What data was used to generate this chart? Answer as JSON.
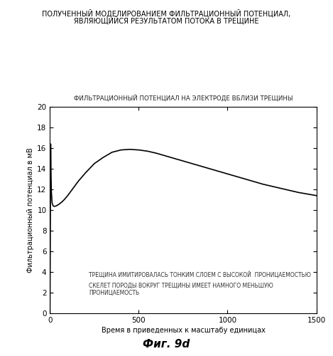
{
  "title_line1": "ПОЛУЧЕННЫЙ МОДЕЛИРОВАНИЕМ ФИЛЬТРАЦИОННЫЙ ПОТЕНЦИАЛ,",
  "title_line2": "ЯВЛЯЮЩИЙСЯ РЕЗУЛЬТАТОМ ПОТОКА В ТРЕЩИНЕ",
  "subtitle": "ФИЛЬТРАЦИОННЫЙ ПОТЕНЦИАЛ НА ЭЛЕКТРОДЕ ВБЛИЗИ ТРЕЩИНЫ",
  "xlabel": "Время в приведенных к масштабу единицах",
  "ylabel": "Фильтрационный потенциал в мВ",
  "fig_label": "Фиг. 9d",
  "annotation1": "ТРЕЩИНА ИМИТИРОВАЛАСЬ ТОНКИМ СЛОЕМ С ВЫСОКОЙ  ПРОНИЦАЕМОСТЬЮ",
  "annotation2": "СКЕЛЕТ ПОРОДЫ ВОКРУГ ТРЕЩИНЫ ИМЕЕТ НАМНОГО МЕНЬШУЮ\nПРОНИЦАЕМОСТЬ",
  "xlim": [
    0,
    1500
  ],
  "ylim": [
    0,
    20
  ],
  "xticks": [
    0,
    500,
    1000,
    1500
  ],
  "yticks": [
    0,
    2,
    4,
    6,
    8,
    10,
    12,
    14,
    16,
    18,
    20
  ],
  "line_color": "#000000",
  "background_color": "#ffffff",
  "curve_x": [
    0,
    2,
    4,
    6,
    8,
    12,
    18,
    25,
    35,
    50,
    65,
    80,
    100,
    130,
    160,
    200,
    250,
    300,
    350,
    400,
    450,
    500,
    550,
    600,
    700,
    800,
    900,
    1000,
    1100,
    1200,
    1300,
    1400,
    1500
  ],
  "curve_y": [
    0.0,
    8.0,
    16.4,
    13.5,
    11.8,
    10.7,
    10.4,
    10.35,
    10.4,
    10.55,
    10.75,
    11.0,
    11.4,
    12.1,
    12.8,
    13.6,
    14.5,
    15.1,
    15.6,
    15.82,
    15.88,
    15.82,
    15.7,
    15.5,
    15.0,
    14.5,
    14.0,
    13.5,
    13.0,
    12.5,
    12.1,
    11.7,
    11.4
  ]
}
